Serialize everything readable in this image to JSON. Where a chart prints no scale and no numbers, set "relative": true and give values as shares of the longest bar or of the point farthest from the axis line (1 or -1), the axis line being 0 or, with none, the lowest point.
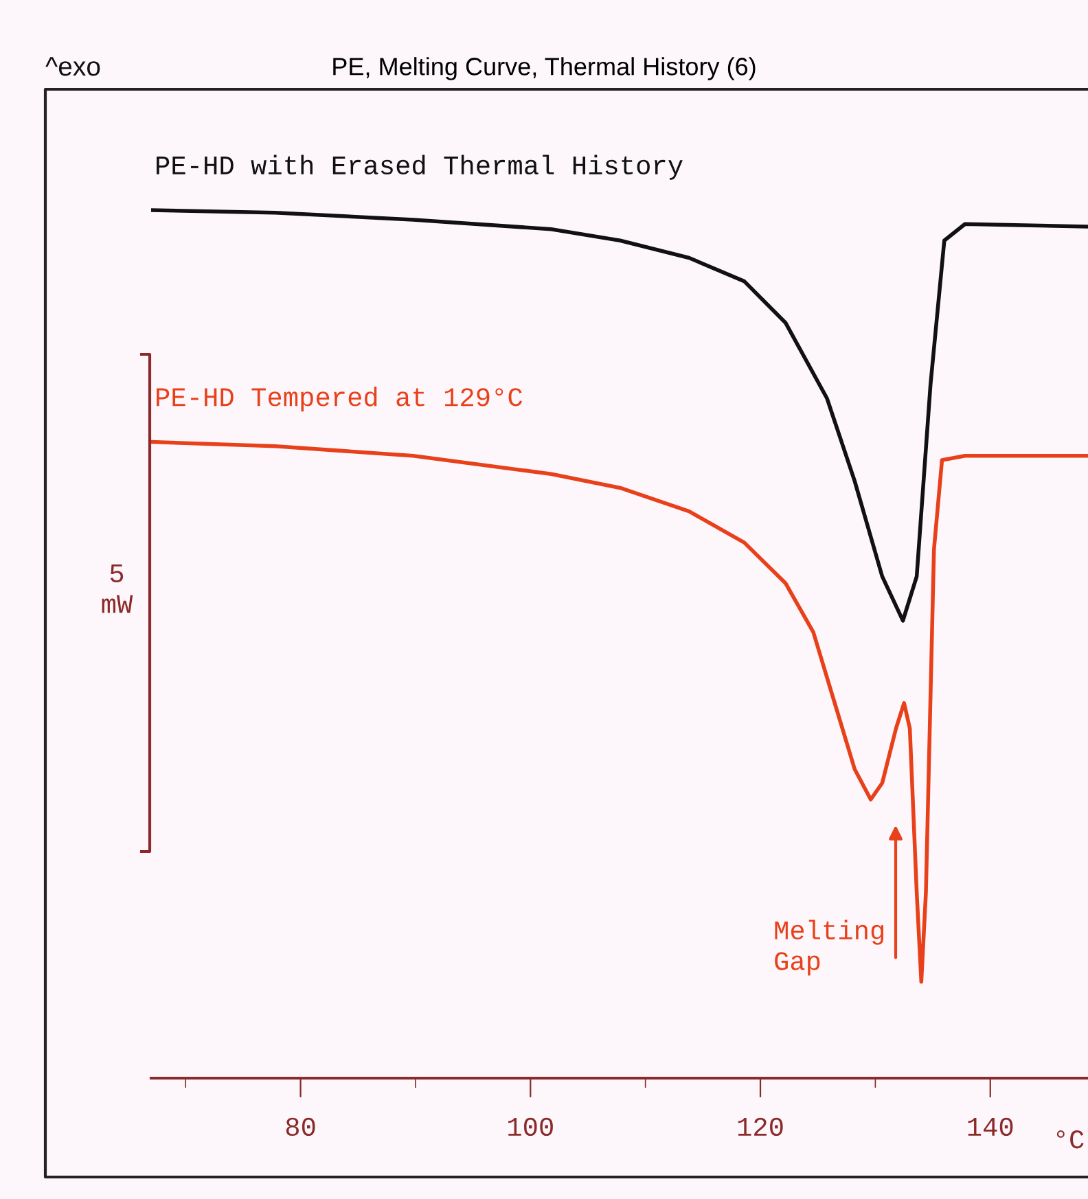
{
  "chart_data": {
    "type": "line",
    "title": "PE, Melting Curve, Thermal History (6)",
    "xlabel": "°C",
    "relative": true,
    "xlim": [
      67,
      148.5
    ],
    "xticks": [
      {
        "value": 70,
        "label": null
      },
      80,
      {
        "value": 90,
        "label": null
      },
      100,
      {
        "value": 110,
        "label": null
      },
      120,
      {
        "value": 130,
        "label": null
      },
      140
    ],
    "grid": false,
    "legend": false,
    "marker": "none",
    "line_style": "solid",
    "annotations": [
      "^exo",
      "5\nmW",
      "Melting\nGap"
    ],
    "series": [
      {
        "name": "PE-HD with Erased Thermal History",
        "color": "#111111",
        "x": [
          67.0,
          77.8,
          89.8,
          101.8,
          107.8,
          113.8,
          118.6,
          122.2,
          125.8,
          128.2,
          130.6,
          132.4,
          133.6,
          134.8,
          136.0,
          137.8,
          148.5
        ],
        "values": [
          1.0,
          0.997,
          0.989,
          0.978,
          0.965,
          0.945,
          0.918,
          0.87,
          0.783,
          0.688,
          0.578,
          0.527,
          0.578,
          0.799,
          0.965,
          0.984,
          0.981
        ]
      },
      {
        "name": "PE-HD Tempered at 129°C",
        "color": "#e8401a",
        "x": [
          67.0,
          77.8,
          89.8,
          101.8,
          107.8,
          113.8,
          118.6,
          122.2,
          124.6,
          126.4,
          128.2,
          129.6,
          130.6,
          131.8,
          132.5,
          133.0,
          133.6,
          134.0,
          134.4,
          135.1,
          135.8,
          137.8,
          148.5
        ],
        "values": [
          0.733,
          0.728,
          0.717,
          0.696,
          0.68,
          0.653,
          0.617,
          0.57,
          0.514,
          0.435,
          0.356,
          0.321,
          0.34,
          0.403,
          0.432,
          0.403,
          0.214,
          0.111,
          0.214,
          0.609,
          0.712,
          0.717,
          0.717
        ]
      }
    ]
  }
}
